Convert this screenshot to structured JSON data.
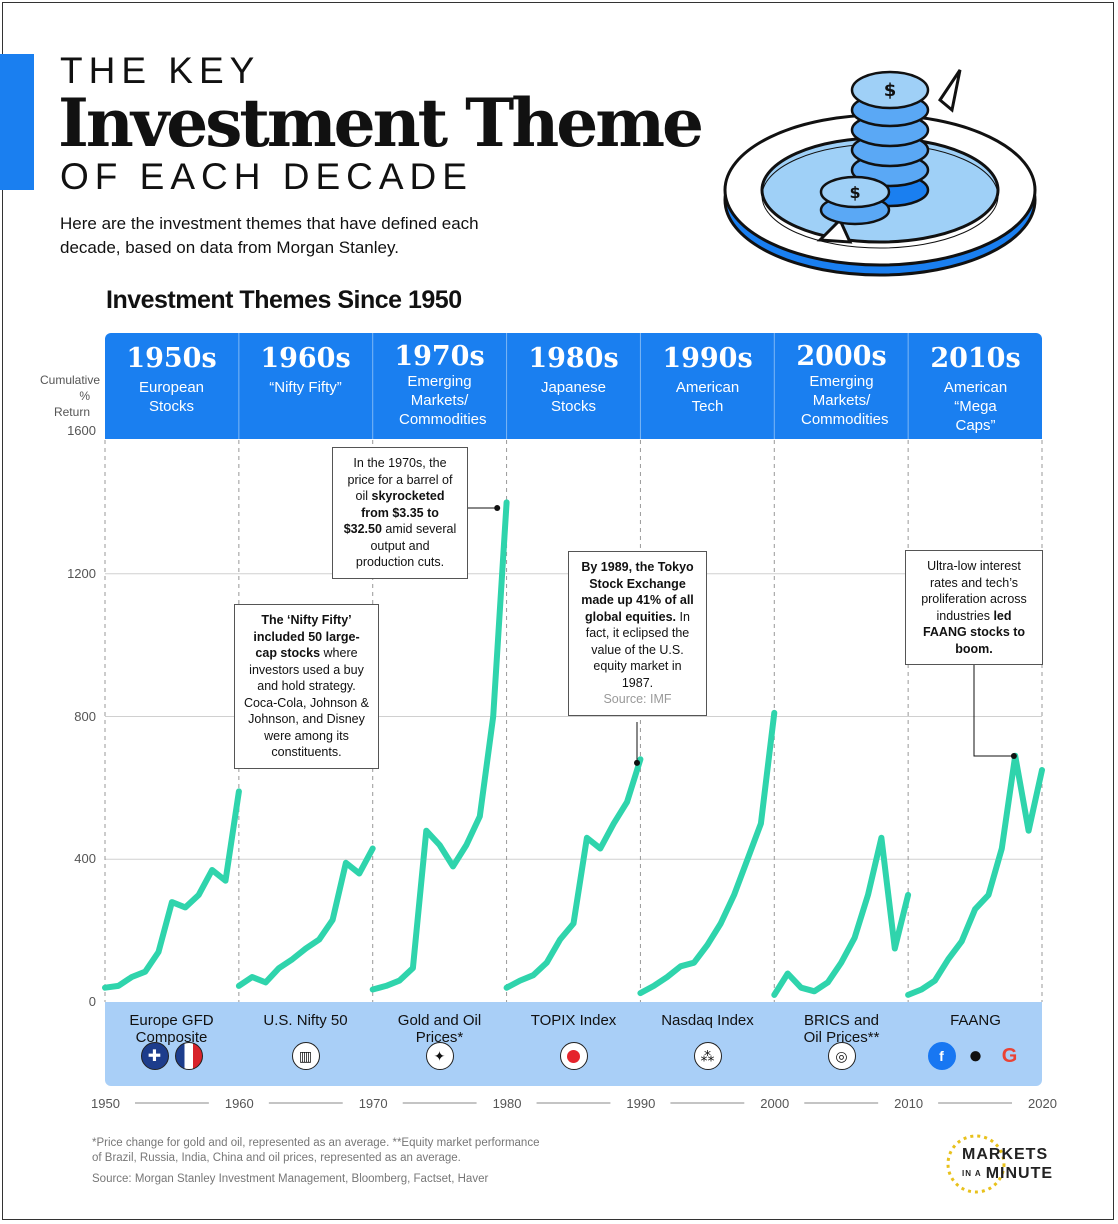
{
  "header": {
    "line1": "THE KEY",
    "line2": "Investment Theme",
    "line3": "OF EACH DECADE",
    "intro": "Here are the investment themes that have defined each decade, based on data from Morgan Stanley."
  },
  "colors": {
    "accent": "#1a7ff0",
    "line": "#2fd4ac",
    "band_light": "#a9cff7"
  },
  "chart_data": {
    "type": "line",
    "title": "Investment Themes Since 1950",
    "ylabel": "Cumulative % Return",
    "ylim": [
      0,
      1600
    ],
    "yticks": [
      "1600",
      "1200",
      "800",
      "400",
      "0"
    ],
    "xlim": [
      1950,
      2020
    ],
    "xticks": [
      "1950",
      "1960",
      "1970",
      "1980",
      "1990",
      "2000",
      "2010",
      "2020"
    ],
    "grid": true,
    "decades": [
      {
        "decade": "1950s",
        "theme": "European Stocks",
        "index": "Europe GFD Composite",
        "x": [
          1950,
          1951,
          1952,
          1953,
          1954,
          1955,
          1956,
          1957,
          1958,
          1959,
          1960
        ],
        "y": [
          40,
          45,
          70,
          85,
          140,
          280,
          265,
          300,
          370,
          340,
          590
        ]
      },
      {
        "decade": "1960s",
        "theme": "“Nifty Fifty”",
        "index": "U.S. Nifty 50",
        "x": [
          1960,
          1961,
          1962,
          1963,
          1964,
          1965,
          1966,
          1967,
          1968,
          1969,
          1970
        ],
        "y": [
          45,
          70,
          55,
          95,
          120,
          150,
          175,
          230,
          390,
          360,
          430
        ]
      },
      {
        "decade": "1970s",
        "theme": "Emerging Markets/ Commodities",
        "index": "Gold and Oil Prices*",
        "x": [
          1970,
          1971,
          1972,
          1973,
          1974,
          1975,
          1976,
          1977,
          1978,
          1979,
          1980
        ],
        "y": [
          35,
          45,
          60,
          95,
          480,
          440,
          380,
          440,
          520,
          800,
          1400
        ]
      },
      {
        "decade": "1980s",
        "theme": "Japanese Stocks",
        "index": "TOPIX Index",
        "x": [
          1980,
          1981,
          1982,
          1983,
          1984,
          1985,
          1986,
          1987,
          1988,
          1989,
          1990
        ],
        "y": [
          40,
          60,
          75,
          110,
          175,
          220,
          460,
          430,
          500,
          560,
          680
        ]
      },
      {
        "decade": "1990s",
        "theme": "American Tech",
        "index": "Nasdaq Index",
        "x": [
          1990,
          1991,
          1992,
          1993,
          1994,
          1995,
          1996,
          1997,
          1998,
          1999,
          2000
        ],
        "y": [
          25,
          45,
          70,
          100,
          110,
          160,
          220,
          300,
          400,
          500,
          810
        ]
      },
      {
        "decade": "2000s",
        "theme": "Emerging Markets/ Commodities",
        "index": "BRICS and Oil Prices**",
        "x": [
          2000,
          2001,
          2002,
          2003,
          2004,
          2005,
          2006,
          2007,
          2008,
          2009,
          2010
        ],
        "y": [
          20,
          80,
          40,
          30,
          55,
          110,
          180,
          300,
          460,
          150,
          300
        ]
      },
      {
        "decade": "2010s",
        "theme": "American “Mega Caps”",
        "index": "FAANG",
        "x": [
          2010,
          2011,
          2012,
          2013,
          2014,
          2015,
          2016,
          2017,
          2018,
          2019,
          2020
        ],
        "y": [
          20,
          35,
          60,
          120,
          170,
          260,
          300,
          430,
          690,
          480,
          650
        ]
      }
    ],
    "annotations": [
      {
        "id": "nifty",
        "parts": [
          {
            "t": "The ‘Nifty Fifty’ included 50 large-cap stocks",
            "b": true
          },
          {
            "t": " where investors used a buy and hold strategy. Coca-Cola, Johnson & Johnson, and Disney were among its constituents.",
            "b": false
          }
        ]
      },
      {
        "id": "oil",
        "parts": [
          {
            "t": "In the 1970s, the price for a barrel of oil ",
            "b": false
          },
          {
            "t": "skyrocketed from $3.35 to $32.50",
            "b": true
          },
          {
            "t": " amid several output and production cuts.",
            "b": false
          }
        ]
      },
      {
        "id": "tokyo",
        "parts": [
          {
            "t": "By 1989, the Tokyo Stock Exchange made up 41% of all global equities.",
            "b": true
          },
          {
            "t": " In fact, it eclipsed the value of the U.S. equity market in 1987.",
            "b": false
          }
        ],
        "source": "Source: IMF"
      },
      {
        "id": "faang",
        "parts": [
          {
            "t": "Ultra-low interest rates and tech’s proliferation across industries ",
            "b": false
          },
          {
            "t": "led FAANG stocks to boom.",
            "b": true
          }
        ]
      }
    ]
  },
  "footnotes": {
    "line1": "*Price change for gold and oil, represented as an average. **Equity market performance",
    "line2": "of Brazil, Russia, India, China and oil prices, represented as an average.",
    "source": "Source: Morgan Stanley Investment Management, Bloomberg, Factset, Haver"
  },
  "brand": {
    "line1": "MARKETS",
    "line2_small": "IN A",
    "line2": "MINUTE"
  },
  "icons": [
    "coins-illustration",
    "uk-flag-icon",
    "france-flag-icon",
    "building-icon",
    "gold-oil-icon",
    "japan-flag-icon",
    "network-icon",
    "globe-icon",
    "facebook-icon",
    "apple-icon",
    "google-icon"
  ]
}
